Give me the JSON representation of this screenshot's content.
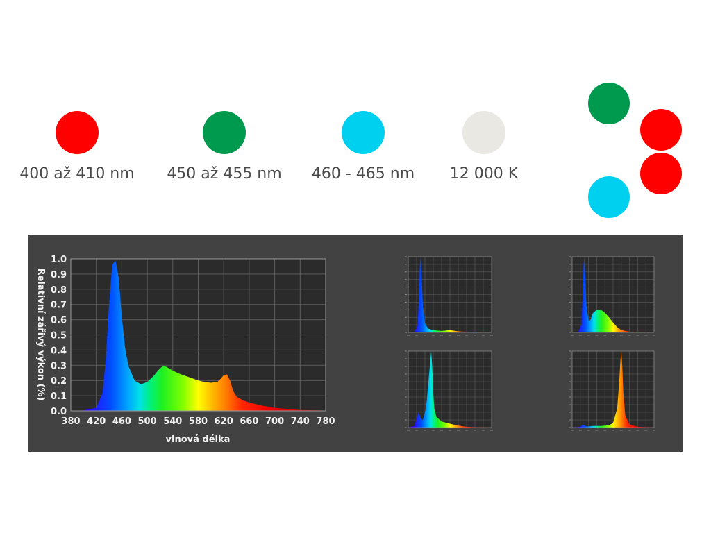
{
  "swatches": [
    {
      "label": "400 až 410 nm",
      "color": "#ff0000"
    },
    {
      "label": "450 až 455 nm",
      "color": "#009a4e"
    },
    {
      "label": "460 - 465 nm",
      "color": "#00d0f0"
    },
    {
      "label": "12 000 K",
      "color": "#eae8e2"
    }
  ],
  "cluster": [
    {
      "color": "#009a4e"
    },
    {
      "color": "#ff0000"
    },
    {
      "color": "#ff0000"
    },
    {
      "color": "#00d0f0"
    }
  ],
  "chart_data": [
    {
      "type": "area",
      "title": "",
      "xlabel": "vlnová délka",
      "ylabel": "Relativní zářivý výkon (%)",
      "xlim": [
        380,
        780
      ],
      "ylim": [
        0.0,
        1.0
      ],
      "xticks": [
        380,
        420,
        460,
        500,
        540,
        580,
        620,
        660,
        700,
        740,
        780
      ],
      "yticks": [
        0.0,
        0.1,
        0.2,
        0.3,
        0.4,
        0.5,
        0.6,
        0.7,
        0.8,
        0.9,
        1.0
      ],
      "grid": true,
      "x": [
        380,
        400,
        420,
        430,
        435,
        440,
        445,
        450,
        455,
        460,
        465,
        470,
        480,
        490,
        500,
        510,
        520,
        525,
        530,
        540,
        550,
        560,
        570,
        580,
        590,
        600,
        610,
        615,
        620,
        625,
        630,
        635,
        640,
        650,
        660,
        680,
        700,
        740,
        780
      ],
      "y": [
        0.0,
        0.003,
        0.02,
        0.12,
        0.35,
        0.7,
        0.96,
        0.99,
        0.88,
        0.62,
        0.42,
        0.3,
        0.2,
        0.175,
        0.19,
        0.23,
        0.28,
        0.295,
        0.29,
        0.265,
        0.245,
        0.23,
        0.215,
        0.2,
        0.19,
        0.185,
        0.19,
        0.21,
        0.235,
        0.24,
        0.2,
        0.13,
        0.095,
        0.07,
        0.055,
        0.035,
        0.02,
        0.006,
        0.002
      ]
    },
    {
      "type": "area",
      "xlim": [
        380,
        780
      ],
      "ylim": [
        0,
        1
      ],
      "grid": true,
      "x": [
        380,
        410,
        425,
        432,
        436,
        440,
        445,
        450,
        460,
        475,
        500,
        540,
        580,
        620,
        660,
        700,
        780
      ],
      "y": [
        0,
        0.01,
        0.1,
        0.5,
        0.9,
        1.0,
        0.7,
        0.35,
        0.12,
        0.05,
        0.03,
        0.02,
        0.03,
        0.015,
        0.008,
        0.004,
        0.0
      ]
    },
    {
      "type": "area",
      "xlim": [
        380,
        780
      ],
      "ylim": [
        0,
        1
      ],
      "grid": true,
      "x": [
        380,
        410,
        425,
        432,
        436,
        440,
        445,
        450,
        460,
        470,
        480,
        500,
        520,
        540,
        560,
        580,
        600,
        620,
        660,
        700,
        780
      ],
      "y": [
        0,
        0.01,
        0.1,
        0.5,
        0.9,
        1.0,
        0.7,
        0.35,
        0.15,
        0.17,
        0.25,
        0.3,
        0.3,
        0.26,
        0.2,
        0.13,
        0.07,
        0.03,
        0.01,
        0.005,
        0.0
      ]
    },
    {
      "type": "area",
      "xlim": [
        380,
        780
      ],
      "ylim": [
        0,
        1
      ],
      "grid": true,
      "x": [
        380,
        410,
        420,
        430,
        440,
        450,
        465,
        475,
        485,
        490,
        495,
        500,
        505,
        515,
        540,
        580,
        620,
        660,
        700,
        780
      ],
      "y": [
        0,
        0.02,
        0.12,
        0.2,
        0.12,
        0.1,
        0.25,
        0.55,
        0.85,
        1.0,
        0.8,
        0.45,
        0.25,
        0.14,
        0.08,
        0.05,
        0.025,
        0.01,
        0.004,
        0.0
      ]
    },
    {
      "type": "area",
      "xlim": [
        380,
        780
      ],
      "ylim": [
        0,
        1
      ],
      "grid": true,
      "x": [
        380,
        420,
        430,
        440,
        450,
        460,
        480,
        520,
        560,
        580,
        600,
        610,
        615,
        620,
        625,
        630,
        640,
        660,
        700,
        780
      ],
      "y": [
        0,
        0.01,
        0.04,
        0.03,
        0.015,
        0.015,
        0.02,
        0.02,
        0.03,
        0.06,
        0.25,
        0.6,
        0.85,
        1.0,
        0.8,
        0.45,
        0.15,
        0.04,
        0.01,
        0.0
      ]
    }
  ]
}
